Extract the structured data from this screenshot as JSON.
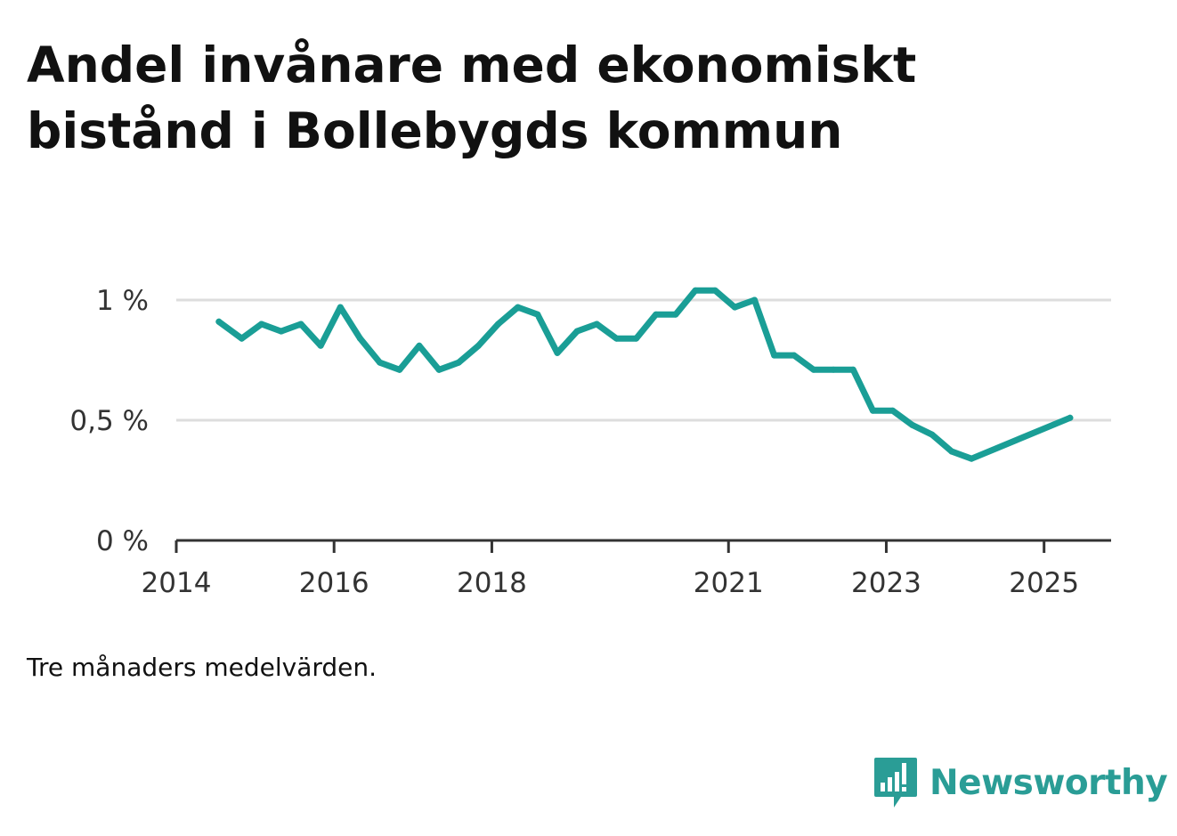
{
  "title": "Andel invånare med ekonomiskt bistånd i Bollebygds kommun",
  "note": "Tre månaders medelvärden.",
  "brand": {
    "name": "Newsworthy",
    "icon": "bar-chart-speech-bubble-icon",
    "color": "#2a9d96"
  },
  "colors": {
    "line": "#1a9e96",
    "grid": "#dddddd",
    "axis": "#333333",
    "tick_text": "#333333"
  },
  "chart_data": {
    "type": "line",
    "title": "Andel invånare med ekonomiskt bistånd i Bollebygds kommun",
    "xlabel": "",
    "ylabel": "",
    "xlim": [
      2014.0,
      2026.0
    ],
    "ylim": [
      0,
      1.1
    ],
    "x_ticks": [
      2014,
      2016,
      2018,
      2021,
      2023,
      2025
    ],
    "x_tick_labels": [
      "2014",
      "2016",
      "2018",
      "2021",
      "2023",
      "2025"
    ],
    "y_ticks": [
      0,
      0.5,
      1
    ],
    "y_tick_labels": [
      "0 %",
      "0,5 %",
      "1 %"
    ],
    "grid": "horizontal",
    "legend": "none",
    "series": [
      {
        "name": "",
        "x": [
          2014.54,
          2014.83,
          2015.08,
          2015.33,
          2015.58,
          2015.83,
          2016.08,
          2016.33,
          2016.58,
          2016.83,
          2017.08,
          2017.33,
          2017.58,
          2017.83,
          2018.08,
          2018.33,
          2018.58,
          2018.83,
          2019.08,
          2019.33,
          2019.58,
          2019.83,
          2020.08,
          2020.33,
          2020.58,
          2020.83,
          2021.08,
          2021.33,
          2021.58,
          2021.83,
          2022.08,
          2022.33,
          2022.58,
          2022.83,
          2023.08,
          2023.33,
          2023.58,
          2023.83,
          2024.08,
          2025.33
        ],
        "values": [
          0.91,
          0.84,
          0.9,
          0.87,
          0.9,
          0.81,
          0.97,
          0.84,
          0.74,
          0.71,
          0.81,
          0.71,
          0.74,
          0.81,
          0.9,
          0.97,
          0.94,
          0.78,
          0.87,
          0.9,
          0.84,
          0.84,
          0.94,
          0.94,
          1.04,
          1.04,
          0.97,
          1.0,
          0.77,
          0.77,
          0.71,
          0.71,
          0.71,
          0.54,
          0.54,
          0.48,
          0.44,
          0.37,
          0.34,
          0.51
        ]
      }
    ]
  }
}
